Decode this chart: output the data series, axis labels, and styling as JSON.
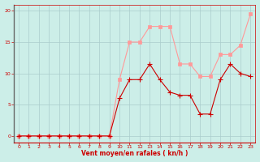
{
  "x_labels": [
    0,
    1,
    2,
    3,
    4,
    5,
    6,
    7,
    8,
    9,
    10,
    11,
    12,
    13,
    14,
    15,
    16,
    17,
    18,
    19,
    20,
    21,
    22,
    23
  ],
  "mean_wind": [
    0,
    0,
    0,
    0,
    0,
    0,
    0,
    0,
    0,
    0,
    6,
    9,
    9,
    11.5,
    9,
    7,
    6.5,
    6.5,
    3.5,
    3.5,
    9,
    11.5,
    10,
    9.5
  ],
  "gust_wind": [
    0,
    0,
    0,
    0,
    0,
    0,
    0,
    0,
    0,
    0,
    9,
    15,
    15,
    17.5,
    17.5,
    17.5,
    11.5,
    11.5,
    9.5,
    9.5,
    13,
    13,
    14.5,
    19.5
  ],
  "mean_color": "#cc0000",
  "gust_color": "#ff9999",
  "bg_color": "#cceee8",
  "grid_color": "#aacccc",
  "left_spine_color": "#666666",
  "xlabel": "Vent moyen/en rafales ( kn/h )",
  "xlim": [
    -0.5,
    23.5
  ],
  "ylim": [
    -1,
    21
  ],
  "yticks": [
    0,
    5,
    10,
    15,
    20
  ],
  "marker_size": 2.5
}
